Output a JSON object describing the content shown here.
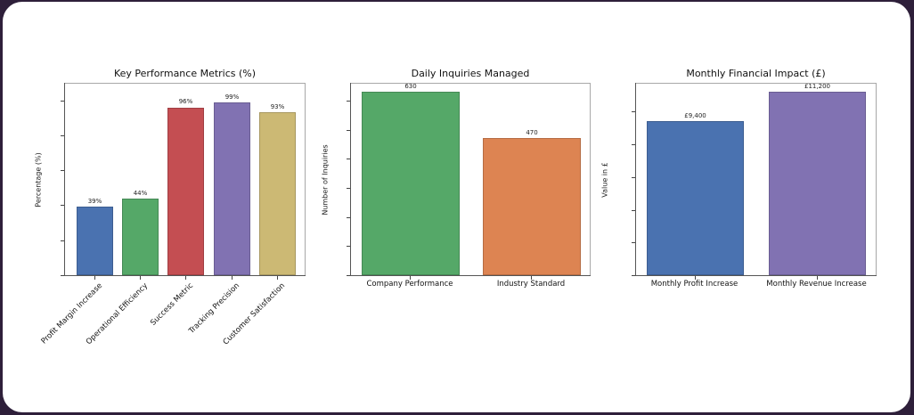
{
  "chart_data": [
    {
      "type": "bar",
      "title": "Key Performance Metrics (%)",
      "xlabel": "",
      "ylabel": "Percentage (%)",
      "categories": [
        "Profit Margin Increase",
        "Operational Efficiency",
        "Success Metric",
        "Tracking Precision",
        "Customer Satisfaction"
      ],
      "values": [
        39,
        44,
        96,
        99,
        93
      ],
      "bar_labels": [
        "39%",
        "44%",
        "96%",
        "99%",
        "93%"
      ],
      "colors": [
        "#4a72b0",
        "#55a868",
        "#c44e52",
        "#8172b2",
        "#ccb974"
      ],
      "ylim": [
        0,
        110
      ],
      "yticks": [
        0,
        20,
        40,
        60,
        80,
        100
      ],
      "xtick_rotation": 45,
      "grid": false,
      "legend": null
    },
    {
      "type": "bar",
      "title": "Daily Inquiries Managed",
      "xlabel": "",
      "ylabel": "Number of Inquiries",
      "categories": [
        "Company Performance",
        "Industry Standard"
      ],
      "values": [
        630,
        470
      ],
      "bar_labels": [
        "630",
        "470"
      ],
      "colors": [
        "#55a868",
        "#dd8452"
      ],
      "ylim": [
        0,
        661
      ],
      "yticks": [
        0,
        100,
        200,
        300,
        400,
        500,
        600
      ],
      "grid": false,
      "legend": null
    },
    {
      "type": "bar",
      "title": "Monthly Financial Impact (£)",
      "xlabel": "",
      "ylabel": "Value in £",
      "categories": [
        "Monthly Profit Increase",
        "Monthly Revenue Increase"
      ],
      "values": [
        9400,
        11200
      ],
      "bar_labels": [
        "£9,400",
        "£11,200"
      ],
      "colors": [
        "#4a72b0",
        "#8172b2"
      ],
      "ylim": [
        0,
        11760
      ],
      "yticks": [
        0,
        2000,
        4000,
        6000,
        8000,
        10000
      ],
      "grid": false,
      "legend": null
    }
  ]
}
